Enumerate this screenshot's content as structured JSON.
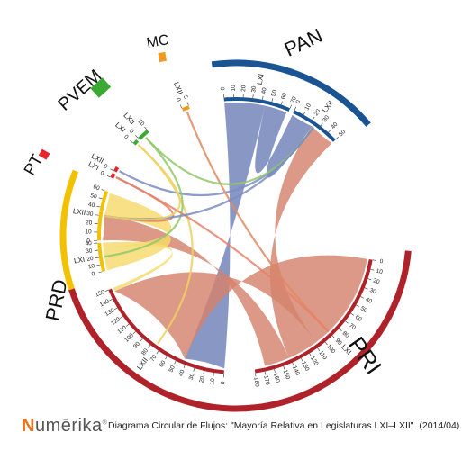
{
  "footer": {
    "logo_text": "umērika",
    "logo_initial": "N",
    "logo_mark": "®",
    "caption": "Diagrama Circular de Flujos: \"Mayoría Relativa en Legislaturas LXI–LXII\". (2014/04)."
  },
  "parties": [
    {
      "key": "PAN",
      "label": "PAN",
      "color": "#1a5493",
      "legislatures": [
        {
          "label": "LXI",
          "ticks": [
            "0",
            "10",
            "20",
            "30",
            "40",
            "50",
            "60",
            "70"
          ]
        },
        {
          "label": "LXII",
          "ticks": [
            "0",
            "10",
            "20",
            "30",
            "40",
            "50"
          ]
        }
      ]
    },
    {
      "key": "PRI",
      "label": "PRI",
      "color": "#b0222a",
      "legislatures": [
        {
          "label": "LXI",
          "ticks": [
            "0",
            "10",
            "20",
            "30",
            "40",
            "50",
            "60",
            "70",
            "80",
            "90",
            "100",
            "110",
            "120",
            "130",
            "140",
            "150",
            "160",
            "170",
            "180"
          ]
        },
        {
          "label": "LXII",
          "ticks": [
            "0",
            "10",
            "20",
            "30",
            "40",
            "50",
            "60",
            "70",
            "80",
            "90",
            "100",
            "110",
            "120",
            "130",
            "140",
            "150"
          ]
        }
      ]
    },
    {
      "key": "PRD",
      "label": "PRD",
      "color": "#f2c200",
      "legislatures": [
        {
          "label": "LXI",
          "ticks": [
            "0",
            "10",
            "20",
            "30",
            "40"
          ]
        },
        {
          "label": "LXII",
          "ticks": [
            "0",
            "10",
            "20",
            "30",
            "40",
            "50",
            "60"
          ]
        }
      ]
    },
    {
      "key": "PT",
      "label": "PT",
      "color": "#e8242c",
      "legislatures": [
        {
          "label": "LXI",
          "ticks": [
            "0"
          ]
        },
        {
          "label": "LXII",
          "ticks": [
            "0"
          ]
        }
      ]
    },
    {
      "key": "PVEM",
      "label": "PVEM",
      "color": "#3aaa35",
      "legislatures": [
        {
          "label": "LXI",
          "ticks": [
            "0"
          ]
        },
        {
          "label": "LXII",
          "ticks": [
            "0",
            "10"
          ]
        }
      ]
    },
    {
      "key": "MC",
      "label": "MC",
      "color": "#f39a1e",
      "legislatures": [
        {
          "label": "LXII",
          "ticks": [
            "0",
            "5"
          ]
        }
      ]
    }
  ],
  "flows": [
    {
      "from": "PAN LXI",
      "to": "PRI LXII",
      "value": 45,
      "color": "#6f80b8"
    },
    {
      "from": "PAN LXI",
      "to": "PAN LXII",
      "value": 25,
      "color": "#6f80b8"
    },
    {
      "from": "PRI LXI",
      "to": "PRI LXII",
      "value": 110,
      "color": "#d4826c"
    },
    {
      "from": "PRI LXI",
      "to": "PAN LXII",
      "value": 35,
      "color": "#d4826c"
    },
    {
      "from": "PRI LXI",
      "to": "PRD LXII",
      "value": 28,
      "color": "#d4826c"
    },
    {
      "from": "PRD LXI",
      "to": "PRD LXII",
      "value": 25,
      "color": "#f5d96b"
    },
    {
      "from": "PRD LXI",
      "to": "PRI LXII",
      "value": 10,
      "color": "#f5d96b"
    }
  ]
}
